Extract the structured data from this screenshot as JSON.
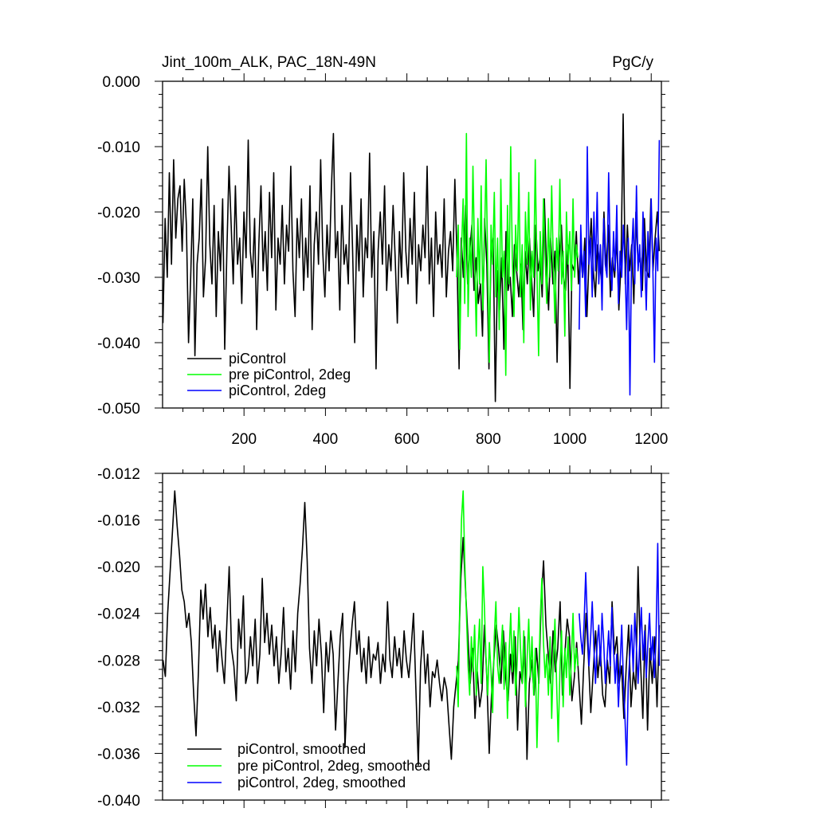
{
  "chart_data": [
    {
      "type": "line",
      "title": "Jint_100m_ALK, PAC_18N-49N",
      "units": "PgC/y",
      "xlim": [
        0,
        1225
      ],
      "ylim": [
        -0.05,
        0.0
      ],
      "x_ticks": [
        200,
        400,
        600,
        800,
        1000,
        1200
      ],
      "x_tick_labels": [
        "200",
        "400",
        "600",
        "800",
        "1000",
        "1200"
      ],
      "x_tick_labels_shown": true,
      "y_ticks": [
        0.0,
        -0.01,
        -0.02,
        -0.03,
        -0.04,
        -0.05
      ],
      "y_tick_labels": [
        "0.000",
        "-0.010",
        "-0.020",
        "-0.030",
        "-0.040",
        "-0.050"
      ],
      "grid": false,
      "legend_position": "bottom-left",
      "series": [
        {
          "name": "piControl",
          "color": "#000000",
          "x_range": [
            1,
            1220
          ],
          "x_step": 5,
          "values": [
            -0.037,
            -0.021,
            -0.03,
            -0.014,
            -0.028,
            -0.012,
            -0.024,
            -0.018,
            -0.016,
            -0.026,
            -0.015,
            -0.022,
            -0.04,
            -0.03,
            -0.018,
            -0.042,
            -0.028,
            -0.024,
            -0.015,
            -0.033,
            -0.027,
            -0.01,
            -0.025,
            -0.031,
            -0.019,
            -0.036,
            -0.023,
            -0.029,
            -0.018,
            -0.041,
            -0.026,
            -0.013,
            -0.022,
            -0.031,
            -0.016,
            -0.028,
            -0.024,
            -0.034,
            -0.02,
            -0.027,
            -0.009,
            -0.026,
            -0.03,
            -0.021,
            -0.038,
            -0.025,
            -0.016,
            -0.029,
            -0.023,
            -0.032,
            -0.017,
            -0.027,
            -0.014,
            -0.035,
            -0.024,
            -0.028,
            -0.019,
            -0.031,
            -0.022,
            -0.026,
            -0.013,
            -0.029,
            -0.036,
            -0.021,
            -0.027,
            -0.018,
            -0.032,
            -0.024,
            -0.03,
            -0.016,
            -0.038,
            -0.025,
            -0.02,
            -0.028,
            -0.012,
            -0.026,
            -0.033,
            -0.022,
            -0.029,
            -0.017,
            -0.008,
            -0.027,
            -0.023,
            -0.035,
            -0.019,
            -0.028,
            -0.025,
            -0.031,
            -0.014,
            -0.026,
            -0.04,
            -0.022,
            -0.029,
            -0.018,
            -0.033,
            -0.024,
            -0.027,
            -0.011,
            -0.03,
            -0.023,
            -0.044,
            -0.026,
            -0.02,
            -0.028,
            -0.016,
            -0.032,
            -0.025,
            -0.029,
            -0.019,
            -0.027,
            -0.037,
            -0.023,
            -0.03,
            -0.014,
            -0.026,
            -0.031,
            -0.021,
            -0.028,
            -0.017,
            -0.034,
            -0.025,
            -0.029,
            -0.022,
            -0.027,
            -0.013,
            -0.031,
            -0.024,
            -0.036,
            -0.02,
            -0.028,
            -0.025,
            -0.03,
            -0.018,
            -0.033,
            -0.026,
            -0.023,
            -0.029,
            -0.015,
            -0.027,
            -0.044,
            -0.024,
            -0.03,
            -0.019,
            -0.031,
            -0.026,
            -0.022,
            -0.032,
            -0.027,
            -0.034,
            -0.031,
            -0.039,
            -0.021,
            -0.028,
            -0.044,
            -0.026,
            -0.024,
            -0.049,
            -0.029,
            -0.035,
            -0.027,
            -0.041,
            -0.023,
            -0.032,
            -0.03,
            -0.036,
            -0.025,
            -0.029,
            -0.033,
            -0.028,
            -0.038,
            -0.026,
            -0.031,
            -0.024,
            -0.03,
            -0.036,
            -0.022,
            -0.029,
            -0.027,
            -0.033,
            -0.018,
            -0.028,
            -0.035,
            -0.024,
            -0.031,
            -0.026,
            -0.043,
            -0.027,
            -0.022,
            -0.03,
            -0.032,
            -0.025,
            -0.047,
            -0.028,
            -0.029,
            -0.023,
            -0.031,
            -0.026,
            -0.03,
            -0.024,
            -0.036,
            -0.027,
            -0.021,
            -0.029,
            -0.033,
            -0.025,
            -0.028,
            -0.031,
            -0.02,
            -0.029,
            -0.022,
            -0.033,
            -0.027,
            -0.03,
            -0.024,
            -0.035,
            -0.028,
            -0.005,
            -0.031,
            -0.022,
            -0.029,
            -0.025,
            -0.034,
            -0.02,
            -0.028,
            -0.027,
            -0.032,
            -0.021,
            -0.029,
            -0.03,
            -0.018,
            -0.029,
            -0.024,
            -0.02,
            -0.026
          ]
        },
        {
          "name": "pre piControl, 2deg",
          "color": "#00ff00",
          "x_range": [
            722,
            1020
          ],
          "x_step": 4,
          "values": [
            -0.03,
            -0.022,
            -0.041,
            -0.026,
            -0.018,
            -0.034,
            -0.008,
            -0.036,
            -0.024,
            -0.03,
            -0.013,
            -0.027,
            -0.039,
            -0.021,
            -0.031,
            -0.016,
            -0.035,
            -0.025,
            -0.012,
            -0.029,
            -0.043,
            -0.022,
            -0.028,
            -0.017,
            -0.033,
            -0.024,
            -0.038,
            -0.015,
            -0.03,
            -0.026,
            -0.045,
            -0.019,
            -0.031,
            -0.01,
            -0.027,
            -0.036,
            -0.022,
            -0.029,
            -0.014,
            -0.033,
            -0.025,
            -0.04,
            -0.02,
            -0.028,
            -0.017,
            -0.035,
            -0.026,
            -0.03,
            -0.012,
            -0.029,
            -0.042,
            -0.023,
            -0.031,
            -0.018,
            -0.027,
            -0.034,
            -0.021,
            -0.03,
            -0.016,
            -0.028,
            -0.037,
            -0.024,
            -0.029,
            -0.015,
            -0.031,
            -0.026,
            -0.039,
            -0.02,
            -0.028,
            -0.023,
            -0.032,
            -0.018,
            -0.03,
            -0.025,
            -0.027
          ]
        },
        {
          "name": "piControl, 2deg",
          "color": "#0000ff",
          "x_range": [
            1023,
            1220
          ],
          "x_step": 4,
          "values": [
            -0.038,
            -0.022,
            -0.03,
            -0.026,
            -0.036,
            -0.01,
            -0.028,
            -0.024,
            -0.033,
            -0.02,
            -0.029,
            -0.017,
            -0.031,
            -0.025,
            -0.035,
            -0.021,
            -0.028,
            -0.03,
            -0.014,
            -0.027,
            -0.032,
            -0.023,
            -0.029,
            -0.019,
            -0.034,
            -0.026,
            -0.03,
            -0.022,
            -0.028,
            -0.038,
            -0.024,
            -0.048,
            -0.027,
            -0.021,
            -0.031,
            -0.016,
            -0.029,
            -0.025,
            -0.033,
            -0.02,
            -0.027,
            -0.035,
            -0.023,
            -0.03,
            -0.018,
            -0.028,
            -0.043,
            -0.024,
            -0.029,
            -0.009
          ]
        }
      ]
    },
    {
      "type": "line",
      "title": "",
      "xlim": [
        0,
        1225
      ],
      "ylim": [
        -0.04,
        -0.012
      ],
      "x_ticks": [
        200,
        400,
        600,
        800,
        1000,
        1200
      ],
      "x_tick_labels_shown": false,
      "y_ticks": [
        -0.012,
        -0.016,
        -0.02,
        -0.024,
        -0.028,
        -0.032,
        -0.036,
        -0.04
      ],
      "y_tick_labels": [
        "-0.012",
        "-0.016",
        "-0.020",
        "-0.024",
        "-0.028",
        "-0.032",
        "-0.036",
        "-0.040"
      ],
      "grid": false,
      "legend_position": "bottom-left",
      "series": [
        {
          "name": "piControl, smoothed",
          "color": "#000000",
          "x_range": [
            1,
            1220
          ],
          "x_step": 6,
          "values": [
            -0.028,
            -0.0294,
            -0.024,
            -0.0205,
            -0.017,
            -0.0135,
            -0.0165,
            -0.019,
            -0.022,
            -0.023,
            -0.0252,
            -0.024,
            -0.0265,
            -0.031,
            -0.0345,
            -0.029,
            -0.022,
            -0.0245,
            -0.0215,
            -0.026,
            -0.0235,
            -0.027,
            -0.025,
            -0.029,
            -0.0255,
            -0.028,
            -0.03,
            -0.025,
            -0.02,
            -0.027,
            -0.0285,
            -0.0315,
            -0.0245,
            -0.027,
            -0.0225,
            -0.03,
            -0.029,
            -0.026,
            -0.0285,
            -0.0245,
            -0.03,
            -0.0275,
            -0.021,
            -0.0265,
            -0.024,
            -0.0275,
            -0.025,
            -0.0285,
            -0.026,
            -0.03,
            -0.0275,
            -0.0235,
            -0.029,
            -0.027,
            -0.0305,
            -0.0255,
            -0.029,
            -0.024,
            -0.0215,
            -0.0185,
            -0.0145,
            -0.0195,
            -0.027,
            -0.03,
            -0.0255,
            -0.0285,
            -0.0245,
            -0.0275,
            -0.0325,
            -0.0265,
            -0.029,
            -0.0255,
            -0.0275,
            -0.034,
            -0.03,
            -0.026,
            -0.024,
            -0.0355,
            -0.0305,
            -0.0275,
            -0.025,
            -0.023,
            -0.0275,
            -0.0255,
            -0.029,
            -0.027,
            -0.03,
            -0.026,
            -0.0295,
            -0.0275,
            -0.028,
            -0.0265,
            -0.03,
            -0.0275,
            -0.029,
            -0.023,
            -0.028,
            -0.0295,
            -0.026,
            -0.0285,
            -0.027,
            -0.0295,
            -0.0255,
            -0.028,
            -0.0295,
            -0.027,
            -0.024,
            -0.0305,
            -0.037,
            -0.0285,
            -0.0255,
            -0.03,
            -0.0275,
            -0.032,
            -0.029,
            -0.0295,
            -0.028,
            -0.03,
            -0.0315,
            -0.0295,
            -0.0305,
            -0.0335,
            -0.0365,
            -0.032,
            -0.03,
            -0.028,
            -0.021,
            -0.0175,
            -0.022,
            -0.026,
            -0.03,
            -0.027,
            -0.033,
            -0.029,
            -0.032,
            -0.0305,
            -0.025,
            -0.0295,
            -0.036,
            -0.031,
            -0.028,
            -0.025,
            -0.027,
            -0.03,
            -0.0255,
            -0.0295,
            -0.0315,
            -0.0275,
            -0.03,
            -0.026,
            -0.034,
            -0.029,
            -0.03,
            -0.026,
            -0.0365,
            -0.03,
            -0.028,
            -0.031,
            -0.027,
            -0.03,
            -0.023,
            -0.0195,
            -0.025,
            -0.0275,
            -0.03,
            -0.0255,
            -0.029,
            -0.027,
            -0.023,
            -0.031,
            -0.0275,
            -0.0245,
            -0.026,
            -0.0315,
            -0.0295,
            -0.0265,
            -0.03,
            -0.0335,
            -0.0285,
            -0.024,
            -0.028,
            -0.0325,
            -0.029,
            -0.0255,
            -0.0295,
            -0.027,
            -0.031,
            -0.032,
            -0.028,
            -0.03,
            -0.023,
            -0.0275,
            -0.026,
            -0.03,
            -0.0285,
            -0.033,
            -0.0285,
            -0.025,
            -0.032,
            -0.029,
            -0.0305,
            -0.02,
            -0.028,
            -0.033,
            -0.025,
            -0.034,
            -0.027,
            -0.03,
            -0.026,
            -0.032,
            -0.025
          ]
        },
        {
          "name": "pre piControl, 2deg, smoothed",
          "color": "#00ff00",
          "x_range": [
            722,
            1020
          ],
          "x_step": 4,
          "values": [
            -0.0285,
            -0.032,
            -0.0225,
            -0.016,
            -0.0135,
            -0.0195,
            -0.024,
            -0.0285,
            -0.031,
            -0.026,
            -0.029,
            -0.025,
            -0.031,
            -0.0275,
            -0.0245,
            -0.03,
            -0.02,
            -0.0235,
            -0.028,
            -0.031,
            -0.0265,
            -0.029,
            -0.0325,
            -0.026,
            -0.023,
            -0.0285,
            -0.03,
            -0.0275,
            -0.025,
            -0.0305,
            -0.0265,
            -0.033,
            -0.0275,
            -0.024,
            -0.029,
            -0.0255,
            -0.031,
            -0.028,
            -0.0235,
            -0.027,
            -0.03,
            -0.0255,
            -0.032,
            -0.028,
            -0.0245,
            -0.0295,
            -0.026,
            -0.031,
            -0.027,
            -0.0355,
            -0.03,
            -0.0245,
            -0.021,
            -0.0265,
            -0.0295,
            -0.0275,
            -0.031,
            -0.026,
            -0.033,
            -0.028,
            -0.0245,
            -0.03,
            -0.035,
            -0.029,
            -0.0255,
            -0.032,
            -0.027,
            -0.0295,
            -0.026,
            -0.031,
            -0.028,
            -0.024,
            -0.029,
            -0.027,
            -0.0285
          ]
        },
        {
          "name": "piControl, 2deg, smoothed",
          "color": "#0000ff",
          "x_range": [
            1023,
            1220
          ],
          "x_step": 4,
          "values": [
            -0.024,
            -0.026,
            -0.0275,
            -0.025,
            -0.0205,
            -0.0245,
            -0.0285,
            -0.026,
            -0.023,
            -0.027,
            -0.03,
            -0.0265,
            -0.025,
            -0.0285,
            -0.024,
            -0.0265,
            -0.03,
            -0.028,
            -0.0255,
            -0.0285,
            -0.0235,
            -0.027,
            -0.03,
            -0.0275,
            -0.032,
            -0.0285,
            -0.025,
            -0.0295,
            -0.033,
            -0.037,
            -0.03,
            -0.0275,
            -0.025,
            -0.029,
            -0.024,
            -0.027,
            -0.03,
            -0.0265,
            -0.0235,
            -0.028,
            -0.0255,
            -0.0295,
            -0.0265,
            -0.024,
            -0.028,
            -0.026,
            -0.0295,
            -0.026,
            -0.018,
            -0.0285
          ]
        }
      ]
    }
  ]
}
